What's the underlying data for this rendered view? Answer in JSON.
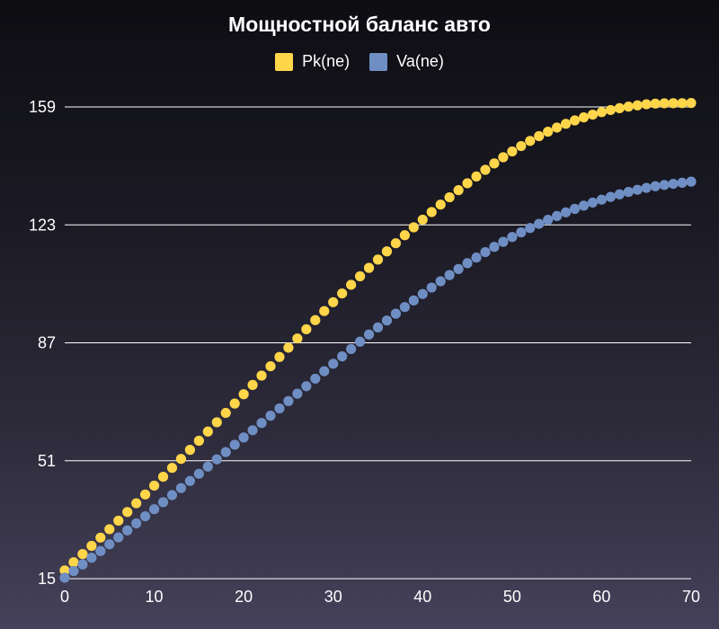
{
  "chart_data": {
    "type": "scatter",
    "title": "Мощностной баланс авто",
    "xlabel": "",
    "ylabel": "",
    "xlim": [
      0,
      70
    ],
    "ylim": [
      15,
      159
    ],
    "x_ticks": [
      0,
      10,
      20,
      30,
      40,
      50,
      60,
      70
    ],
    "y_ticks": [
      15,
      51,
      87,
      123,
      159
    ],
    "grid": "horizontal",
    "legend_position": "top-center",
    "series": [
      {
        "name": "Pk(ne)",
        "color": "#ffd54a",
        "x": [
          0,
          5,
          10,
          15,
          20,
          25,
          30,
          35,
          40,
          45,
          50,
          55,
          60,
          65,
          70
        ],
        "y": [
          17.5,
          30.1,
          43.4,
          57.1,
          71.3,
          85.5,
          99.4,
          112.4,
          124.6,
          135.7,
          145.4,
          152.7,
          157.4,
          159.8,
          160.2
        ]
      },
      {
        "name": "Va(ne)",
        "color": "#6f8fc4",
        "x": [
          0,
          5,
          10,
          15,
          20,
          25,
          30,
          35,
          40,
          45,
          50,
          55,
          60,
          65,
          70
        ],
        "y": [
          15.3,
          25.5,
          36.2,
          47.0,
          58.1,
          69.2,
          80.6,
          91.7,
          101.9,
          111.3,
          119.3,
          125.7,
          130.7,
          134.3,
          136.2
        ]
      }
    ]
  }
}
